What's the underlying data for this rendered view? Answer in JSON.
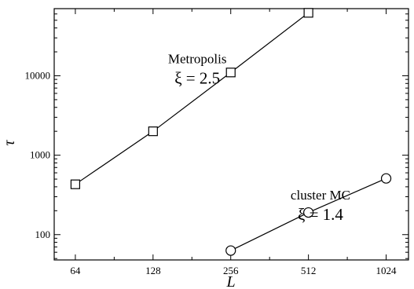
{
  "chart_data": {
    "type": "line",
    "xlabel": "L",
    "ylabel": "τ",
    "xscale": "log2",
    "yscale": "log10",
    "xlim": [
      53,
      1250
    ],
    "ylim": [
      48,
      70000
    ],
    "x_ticks": [
      64,
      128,
      256,
      512,
      1024
    ],
    "x_tick_labels": [
      "64",
      "128",
      "256",
      "512",
      "1024"
    ],
    "y_ticks": [
      100,
      1000,
      10000
    ],
    "y_tick_labels": [
      "100",
      "1000",
      "10000"
    ],
    "grid": false,
    "legend": "none",
    "series": [
      {
        "marker": "square",
        "color": "#000000",
        "x": [
          64,
          128,
          256,
          512
        ],
        "y": [
          430,
          2000,
          11000,
          62000
        ]
      },
      {
        "marker": "circle",
        "color": "#000000",
        "x": [
          256,
          512,
          1024
        ],
        "y": [
          63,
          190,
          510
        ]
      }
    ],
    "annotations": [
      {
        "label": "Metropolis",
        "xi": "ξ = 2.5",
        "anchor_x": 190,
        "anchor_y": 11000
      },
      {
        "label": "cluster MC",
        "xi": "ξ = 1.4",
        "anchor_x": 570,
        "anchor_y": 210
      }
    ]
  }
}
